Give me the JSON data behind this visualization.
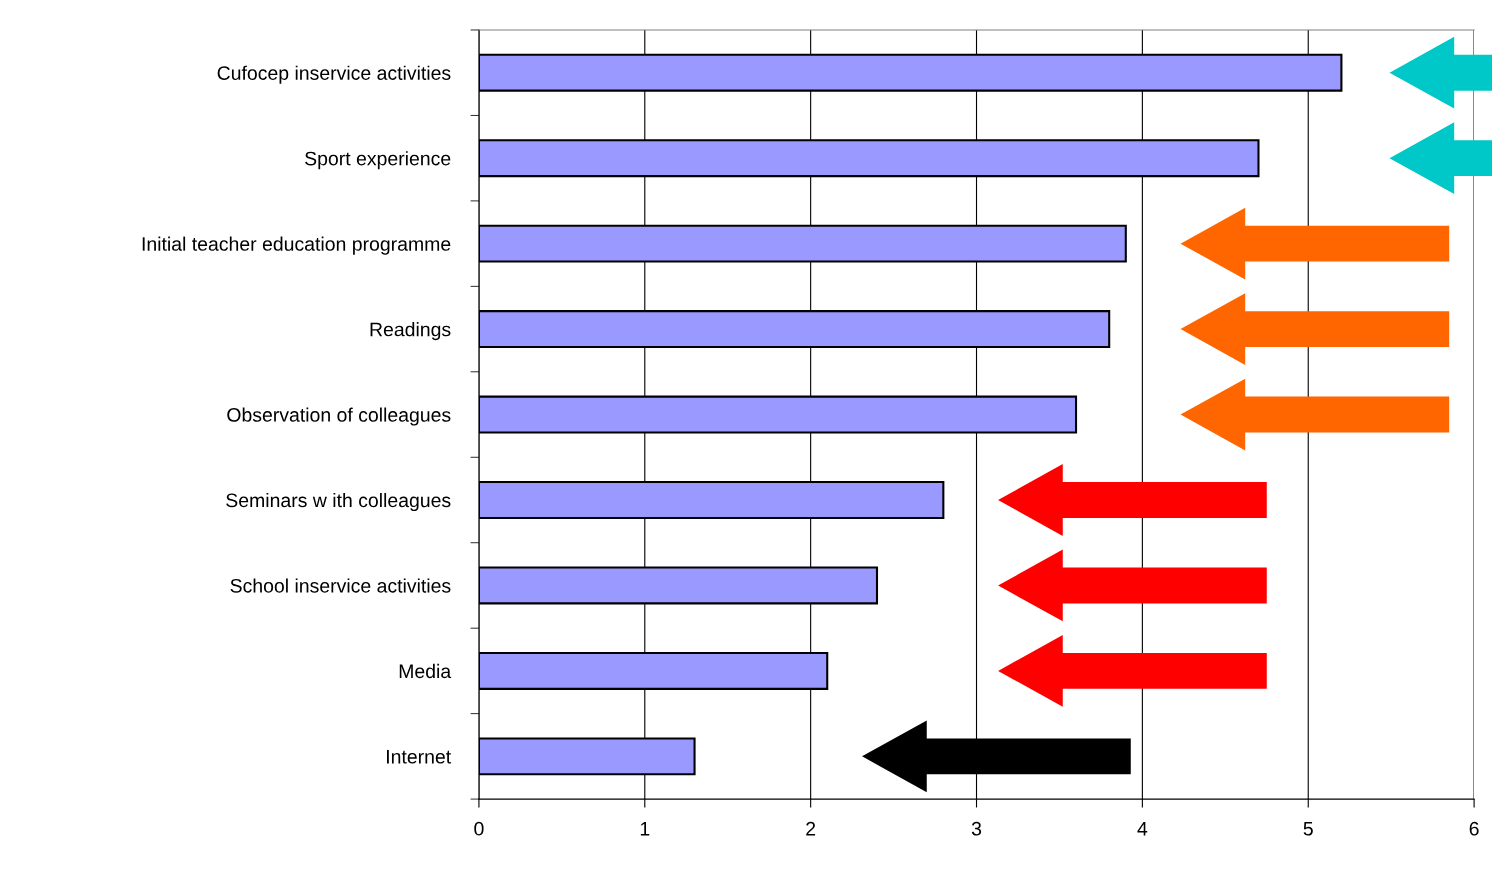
{
  "chart_data": {
    "type": "bar",
    "orientation": "horizontal",
    "categories": [
      "Cufocep inservice activities",
      "Sport experience",
      "Initial teacher education programme",
      "Readings",
      "Observation of colleagues",
      "Seminars w ith colleagues",
      "School inservice activities",
      "Media",
      "Internet"
    ],
    "values": [
      5.2,
      4.7,
      3.9,
      3.8,
      3.6,
      2.8,
      2.4,
      2.1,
      1.3
    ],
    "color": "#9999ff",
    "xlim": [
      0,
      6
    ],
    "xticks": [
      0,
      1,
      2,
      3,
      4,
      5,
      6
    ],
    "grid": "x"
  }
}
